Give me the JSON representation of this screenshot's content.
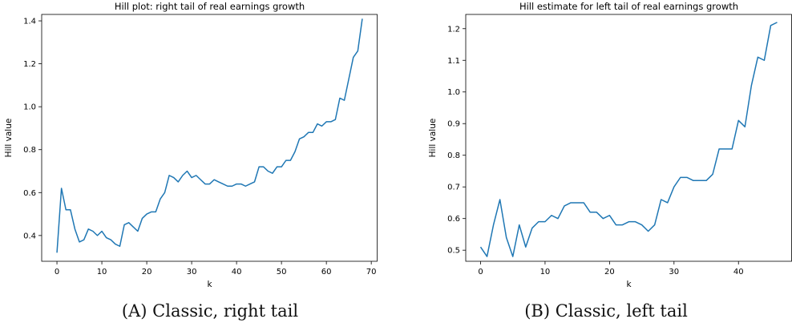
{
  "captions": [
    {
      "tag": "(A)",
      "text": "Classic, right tail"
    },
    {
      "tag": "(B)",
      "text": "Classic, left tail"
    }
  ],
  "chart_data": [
    {
      "type": "line",
      "title": "Hill plot: right tail of real earnings growth",
      "xlabel": "k",
      "ylabel": "Hill value",
      "xlim": [
        -3.4,
        71.4
      ],
      "ylim": [
        0.28,
        1.43
      ],
      "xticks": [
        0,
        10,
        20,
        30,
        40,
        50,
        60,
        70
      ],
      "yticks": [
        0.4,
        0.6,
        0.8,
        1.0,
        1.2,
        1.4
      ],
      "ytick_labels": [
        "0.4",
        "0.6",
        "0.8",
        "1.0",
        "1.2",
        "1.4"
      ],
      "color": "#1f77b4",
      "x": [
        0,
        1,
        2,
        3,
        4,
        5,
        6,
        7,
        8,
        9,
        10,
        11,
        12,
        13,
        14,
        15,
        16,
        17,
        18,
        19,
        20,
        21,
        22,
        23,
        24,
        25,
        26,
        27,
        28,
        29,
        30,
        31,
        32,
        33,
        34,
        35,
        36,
        37,
        38,
        39,
        40,
        41,
        42,
        43,
        44,
        45,
        46,
        47,
        48,
        49,
        50,
        51,
        52,
        53,
        54,
        55,
        56,
        57,
        58,
        59,
        60,
        61,
        62,
        63,
        64,
        65,
        66,
        67,
        68
      ],
      "y": [
        0.32,
        0.62,
        0.52,
        0.52,
        0.43,
        0.37,
        0.38,
        0.43,
        0.42,
        0.4,
        0.42,
        0.39,
        0.38,
        0.36,
        0.35,
        0.45,
        0.46,
        0.44,
        0.42,
        0.48,
        0.5,
        0.51,
        0.51,
        0.57,
        0.6,
        0.68,
        0.67,
        0.65,
        0.68,
        0.7,
        0.67,
        0.68,
        0.66,
        0.64,
        0.64,
        0.66,
        0.65,
        0.64,
        0.63,
        0.63,
        0.64,
        0.64,
        0.63,
        0.64,
        0.65,
        0.72,
        0.72,
        0.7,
        0.69,
        0.72,
        0.72,
        0.75,
        0.75,
        0.79,
        0.85,
        0.86,
        0.88,
        0.88,
        0.92,
        0.91,
        0.93,
        0.93,
        0.94,
        1.04,
        1.03,
        1.13,
        1.23,
        1.26,
        1.41
      ]
    },
    {
      "type": "line",
      "title": "Hill estimate for left tail of real earnings growth",
      "xlabel": "k",
      "ylabel": "Hill value",
      "xlim": [
        -2.3,
        48.3
      ],
      "ylim": [
        0.465,
        1.245
      ],
      "xticks": [
        0,
        10,
        20,
        30,
        40
      ],
      "yticks": [
        0.5,
        0.6,
        0.7,
        0.8,
        0.9,
        1.0,
        1.1,
        1.2
      ],
      "ytick_labels": [
        "0.5",
        "0.6",
        "0.7",
        "0.8",
        "0.9",
        "1.0",
        "1.1",
        "1.2"
      ],
      "color": "#1f77b4",
      "x": [
        0,
        1,
        2,
        3,
        4,
        5,
        6,
        7,
        8,
        9,
        10,
        11,
        12,
        13,
        14,
        15,
        16,
        17,
        18,
        19,
        20,
        21,
        22,
        23,
        24,
        25,
        26,
        27,
        28,
        29,
        30,
        31,
        32,
        33,
        34,
        35,
        36,
        37,
        38,
        39,
        40,
        41,
        42,
        43,
        44,
        45,
        46
      ],
      "y": [
        0.51,
        0.48,
        0.58,
        0.66,
        0.54,
        0.48,
        0.58,
        0.51,
        0.57,
        0.59,
        0.59,
        0.61,
        0.6,
        0.64,
        0.65,
        0.65,
        0.65,
        0.62,
        0.62,
        0.6,
        0.61,
        0.58,
        0.58,
        0.59,
        0.59,
        0.58,
        0.56,
        0.58,
        0.66,
        0.65,
        0.7,
        0.73,
        0.73,
        0.72,
        0.72,
        0.72,
        0.74,
        0.82,
        0.82,
        0.82,
        0.91,
        0.89,
        1.02,
        1.11,
        1.1,
        1.21,
        1.22
      ]
    }
  ]
}
